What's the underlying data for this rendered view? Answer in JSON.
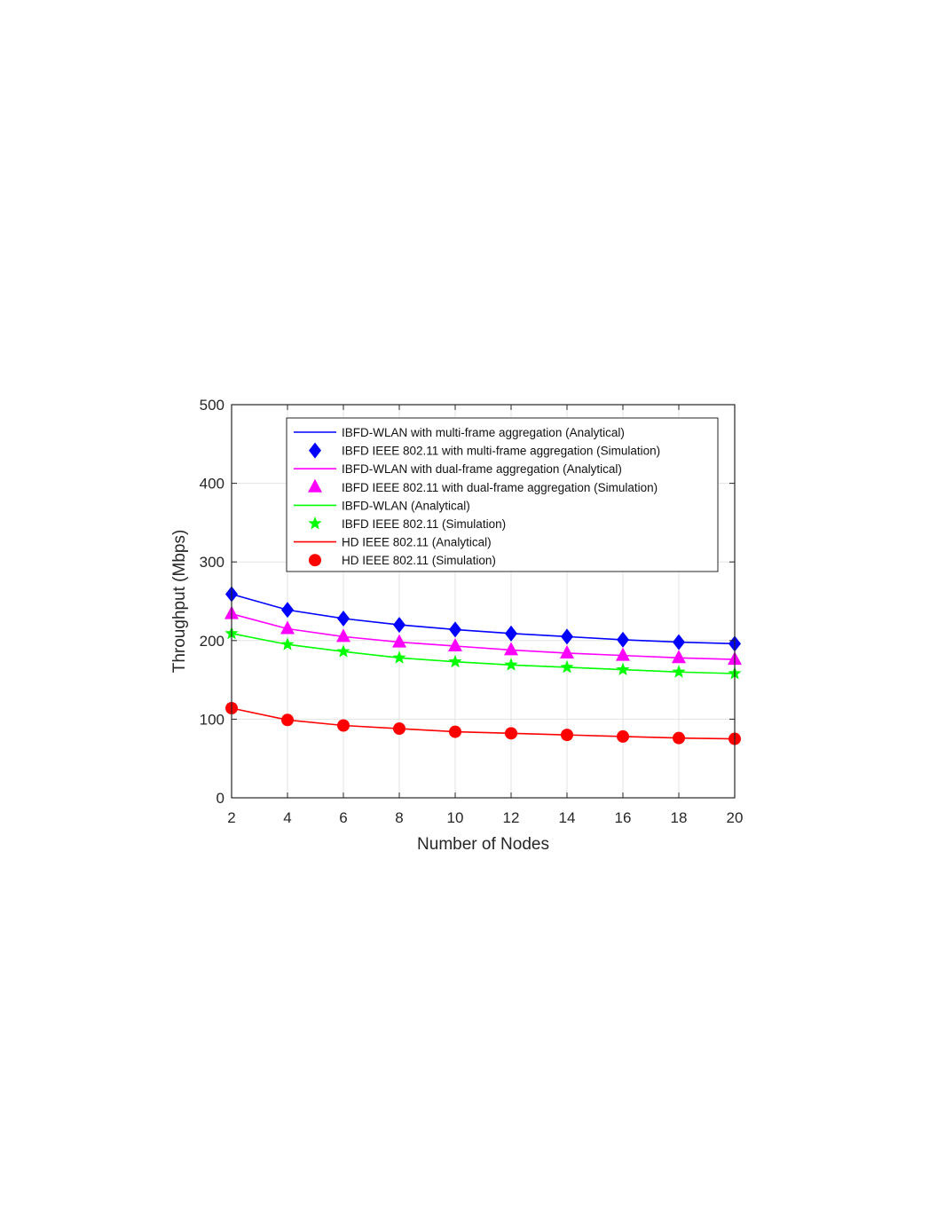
{
  "chart_data": {
    "type": "line",
    "xlabel": "Number of Nodes",
    "ylabel": "Throughput (Mbps)",
    "xlim": [
      2,
      20
    ],
    "ylim": [
      0,
      500
    ],
    "xticks": [
      2,
      4,
      6,
      8,
      10,
      12,
      14,
      16,
      18,
      20
    ],
    "yticks": [
      0,
      100,
      200,
      300,
      400,
      500
    ],
    "grid": true,
    "legend_position": "top-right",
    "x": [
      2,
      4,
      6,
      8,
      10,
      12,
      14,
      16,
      18,
      20
    ],
    "series": [
      {
        "name": "IBFD-WLAN  with multi-frame aggregation (Analytical)",
        "kind": "line",
        "color": "#0000ff",
        "values": [
          259,
          239,
          228,
          220,
          214,
          209,
          205,
          201,
          198,
          196
        ]
      },
      {
        "name": "IBFD IEEE 802.11 with multi-frame aggregation (Simulation)",
        "kind": "marker",
        "marker": "diamond",
        "color": "#0000ff",
        "values": [
          259,
          239,
          228,
          220,
          214,
          209,
          205,
          201,
          198,
          196
        ]
      },
      {
        "name": "IBFD-WLAN  with dual-frame aggregation (Analytical)",
        "kind": "line",
        "color": "#ff00ff",
        "values": [
          234,
          215,
          205,
          198,
          193,
          188,
          184,
          181,
          178,
          176
        ]
      },
      {
        "name": "IBFD IEEE 802.11 with dual-frame aggregation (Simulation)",
        "kind": "marker",
        "marker": "triangle",
        "color": "#ff00ff",
        "values": [
          234,
          215,
          205,
          198,
          193,
          188,
          184,
          181,
          178,
          176
        ]
      },
      {
        "name": "IBFD-WLAN  (Analytical)",
        "kind": "line",
        "color": "#00ff00",
        "values": [
          209,
          195,
          186,
          178,
          173,
          169,
          166,
          163,
          160,
          158
        ]
      },
      {
        "name": "IBFD IEEE 802.11 (Simulation)",
        "kind": "marker",
        "marker": "star",
        "color": "#00ff00",
        "values": [
          209,
          195,
          186,
          178,
          173,
          169,
          166,
          163,
          160,
          158
        ]
      },
      {
        "name": "HD IEEE 802.11 (Analytical)",
        "kind": "line",
        "color": "#ff0000",
        "values": [
          114,
          99,
          92,
          88,
          84,
          82,
          80,
          78,
          76,
          75
        ]
      },
      {
        "name": "HD IEEE 802.11 (Simulation)",
        "kind": "marker",
        "marker": "circle",
        "color": "#ff0000",
        "values": [
          114,
          99,
          92,
          88,
          84,
          82,
          80,
          78,
          76,
          75
        ]
      }
    ]
  }
}
